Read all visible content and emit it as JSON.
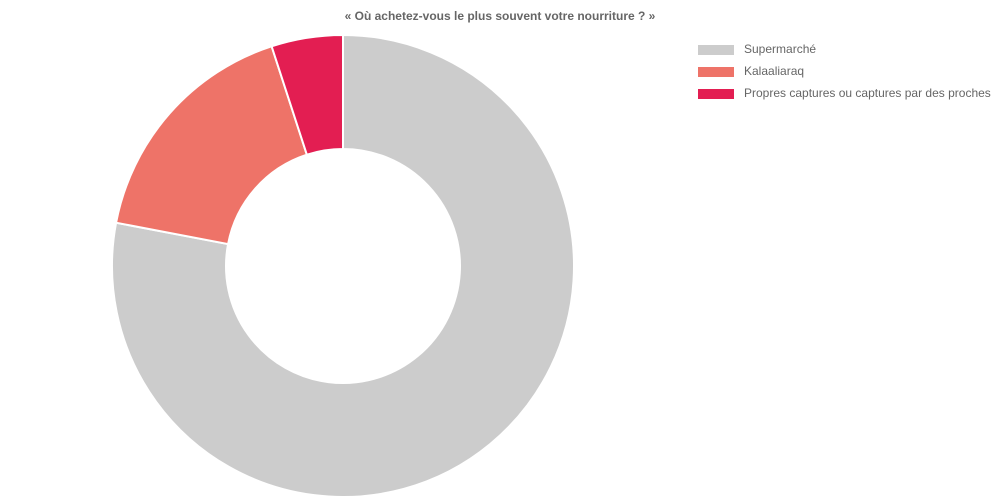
{
  "chart_data": {
    "type": "donut",
    "title": "« Où achetez-vous le plus souvent votre nourriture ? »",
    "categories": [
      "Supermarché",
      "Kalaaliaraq",
      "Propres captures ou captures par des proches"
    ],
    "values": [
      78,
      17,
      5
    ],
    "colors": [
      "#cccccc",
      "#ee7368",
      "#e31e52"
    ],
    "legend": "top-right"
  }
}
